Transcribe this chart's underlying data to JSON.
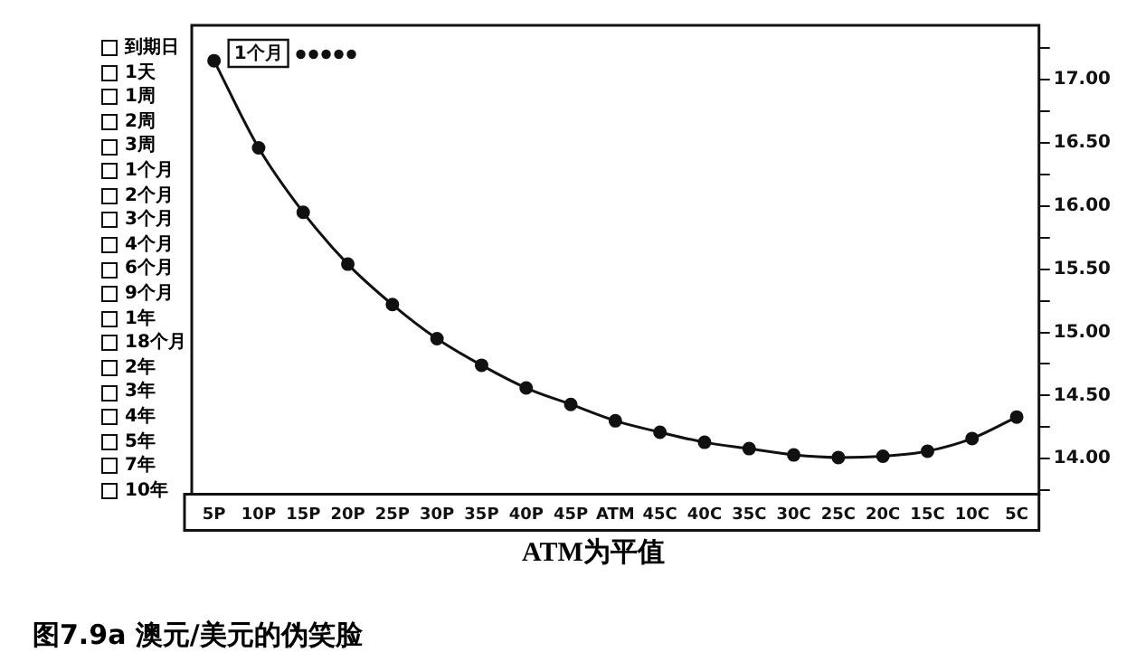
{
  "chart_data": {
    "type": "line",
    "title": "图7.9a 澳元/美元的伪笑脸",
    "xlabel": "ATM为平值",
    "categories": [
      "5P",
      "10P",
      "15P",
      "20P",
      "25P",
      "30P",
      "35P",
      "40P",
      "45P",
      "ATM",
      "45C",
      "40C",
      "35C",
      "30C",
      "25C",
      "20C",
      "15C",
      "10C",
      "5C"
    ],
    "series": [
      {
        "name": "1个月",
        "color": "#111111",
        "values": [
          17.15,
          16.46,
          15.95,
          15.54,
          15.22,
          14.95,
          14.74,
          14.56,
          14.43,
          14.3,
          14.21,
          14.13,
          14.08,
          14.03,
          14.01,
          14.02,
          14.06,
          14.16,
          14.33
        ]
      }
    ],
    "ylim": [
      13.72,
      17.43
    ],
    "yticks": [
      {
        "value": 13.75,
        "label": null
      },
      {
        "value": 14,
        "label": "14.00"
      },
      {
        "value": 14.25,
        "label": null
      },
      {
        "value": 14.5,
        "label": "14.50"
      },
      {
        "value": 14.75,
        "label": null
      },
      {
        "value": 15,
        "label": "15.00"
      },
      {
        "value": 15.25,
        "label": null
      },
      {
        "value": 15.5,
        "label": "15.50"
      },
      {
        "value": 15.75,
        "label": null
      },
      {
        "value": 16,
        "label": "16.00"
      },
      {
        "value": 16.25,
        "label": null
      },
      {
        "value": 16.5,
        "label": "16.50"
      },
      {
        "value": 16.75,
        "label": null
      },
      {
        "value": 17,
        "label": "17.00"
      },
      {
        "value": 17.25,
        "label": null
      }
    ],
    "annotations": [
      "到期日",
      "1天",
      "1周",
      "2周",
      "3周",
      "1个月",
      "2个月",
      "3个月",
      "4个月",
      "6个月",
      "9个月",
      "1年",
      "18个月",
      "2年",
      "3年",
      "4年",
      "5年",
      "7年",
      "10年"
    ],
    "grid": false,
    "legend": "top left",
    "marker": "circle",
    "line_style": "solid"
  }
}
